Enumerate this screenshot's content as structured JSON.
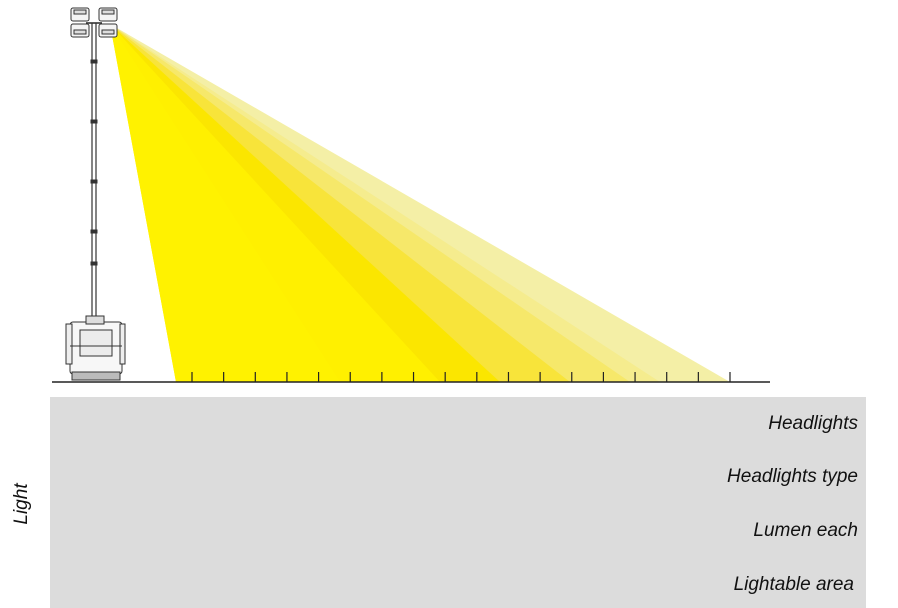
{
  "diagram": {
    "beam_colors": [
      "#fff000",
      "#fbe600",
      "#f8e43a",
      "#f6e86a",
      "#f5ec8e",
      "#f4efa6"
    ],
    "scale_ticks": 18
  },
  "panel": {
    "side_label": "Light",
    "rows": [
      {
        "label": "Headlights"
      },
      {
        "label": "Headlights type"
      },
      {
        "label": "Lumen each"
      },
      {
        "label": "Lightable area"
      }
    ]
  }
}
